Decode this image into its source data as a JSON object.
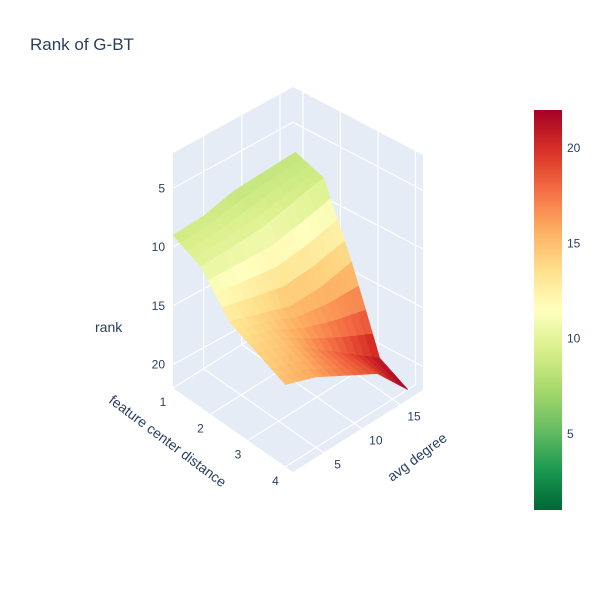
{
  "chart_data": {
    "type": "surface",
    "title": "Rank of G-BT",
    "xlabel": "feature center distance",
    "ylabel": "avg degree",
    "zlabel": "rank",
    "x_ticks": [
      "1",
      "2",
      "3",
      "4"
    ],
    "y_ticks": [
      "5",
      "10",
      "15"
    ],
    "z_ticks": [
      "5",
      "10",
      "15",
      "20"
    ],
    "colorbar_ticks": [
      "5",
      "10",
      "15",
      "20"
    ],
    "x": [
      1,
      1.75,
      2.5,
      3.25,
      4
    ],
    "y": [
      1,
      5,
      9,
      13,
      17
    ],
    "z": [
      [
        9,
        10,
        13,
        14,
        15
      ],
      [
        9,
        10,
        14,
        15,
        16
      ],
      [
        8.5,
        10,
        15,
        17,
        17.5
      ],
      [
        8.5,
        9.5,
        15,
        19,
        19
      ],
      [
        8.5,
        9,
        14.5,
        21,
        22
      ]
    ],
    "zlim": [
      2,
      22
    ],
    "colorscale": "RdYlGn reversed",
    "colorbar_range": [
      1,
      22
    ],
    "colors": {
      "scene_bg": "#e5ecf6",
      "grid": "#ffffff",
      "text": "#2a3f5f"
    }
  }
}
